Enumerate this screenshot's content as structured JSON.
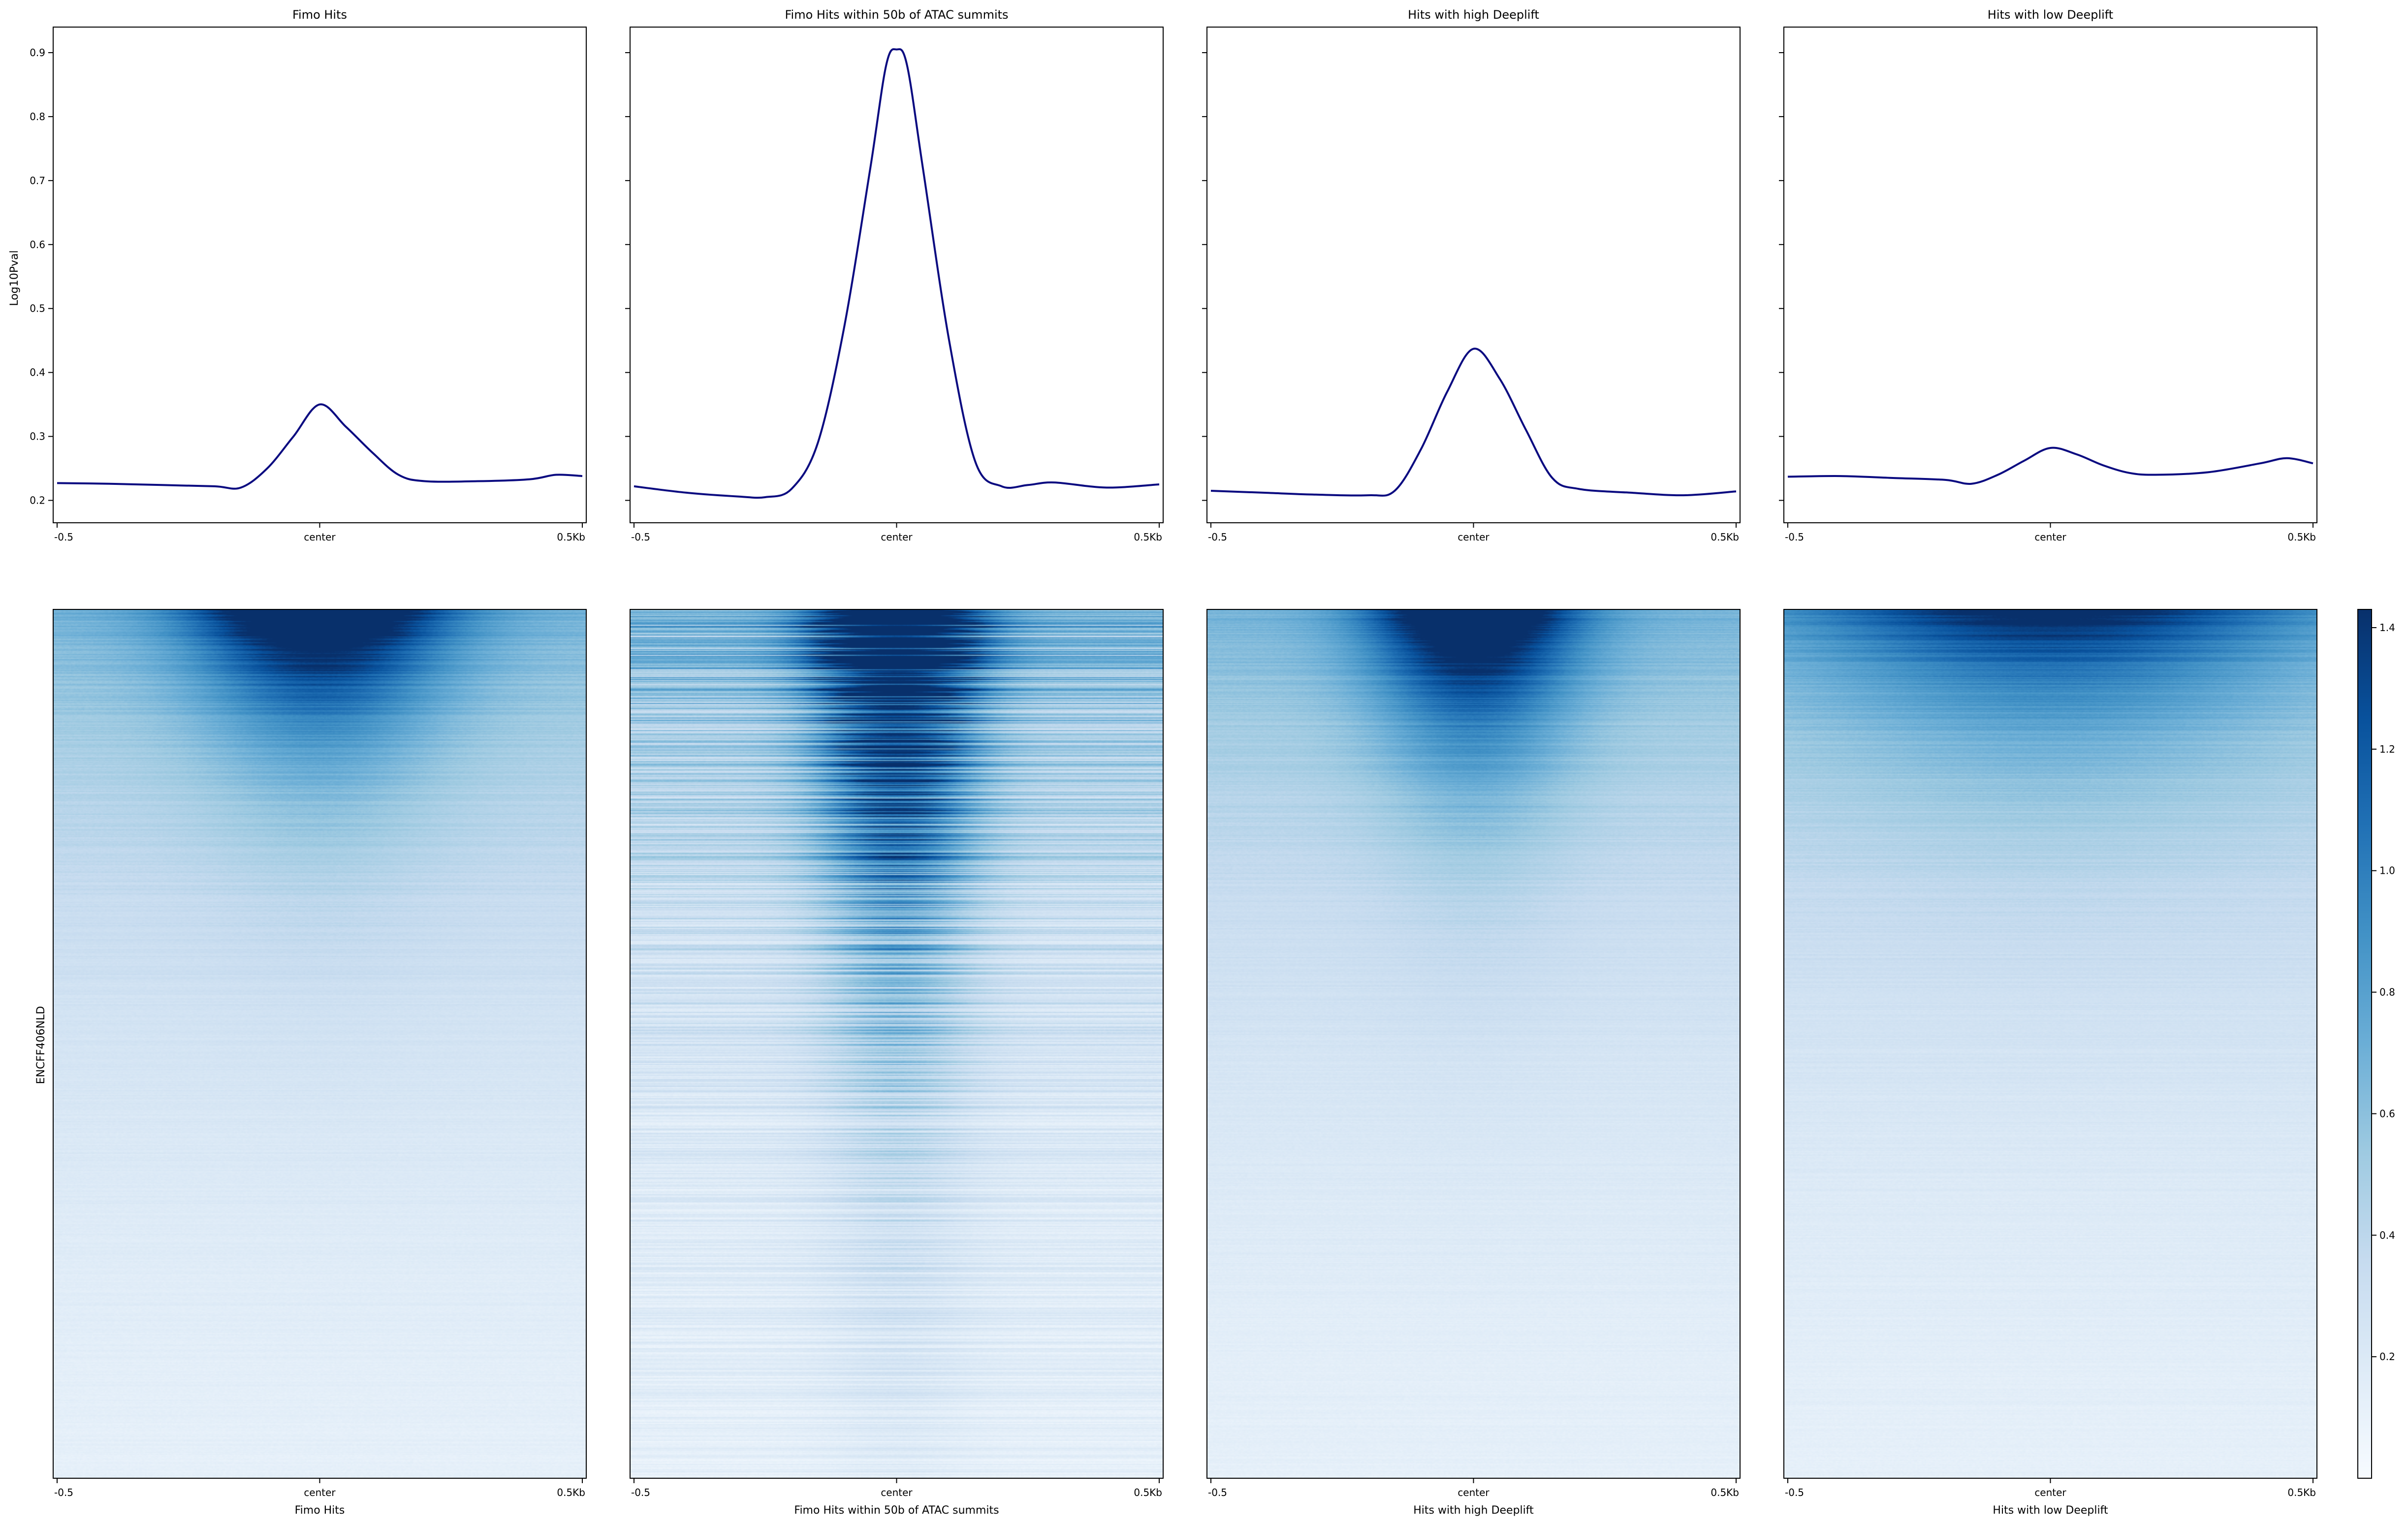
{
  "figure": {
    "ylabel_profile": "Log10Pval",
    "ylabel_heatmap": "ENCFF406NLD",
    "colors": {
      "profile_line": "#0a0a80",
      "colormap": [
        "#f7fbff",
        "#deebf7",
        "#c6dbef",
        "#9ecae1",
        "#6baed6",
        "#4292c6",
        "#2171b5",
        "#08519c",
        "#08306b"
      ]
    }
  },
  "chart_data": [
    {
      "type": "line",
      "panel": "profile",
      "title": "Fimo Hits",
      "xlabel": "",
      "ylabel": "Log10Pval",
      "x_ticks": [
        "-0.5",
        "center",
        "0.5Kb"
      ],
      "x": [
        -0.5,
        -0.4,
        -0.3,
        -0.2,
        -0.15,
        -0.1,
        -0.05,
        0,
        0.05,
        0.1,
        0.15,
        0.2,
        0.3,
        0.4,
        0.45,
        0.5
      ],
      "y": [
        0.227,
        0.226,
        0.224,
        0.222,
        0.22,
        0.25,
        0.3,
        0.35,
        0.315,
        0.275,
        0.24,
        0.23,
        0.23,
        0.233,
        0.24,
        0.238
      ],
      "ylim": [
        0.165,
        0.94
      ],
      "y_ticks": [
        0.2,
        0.3,
        0.4,
        0.5,
        0.6,
        0.7,
        0.8,
        0.9
      ],
      "grid": false
    },
    {
      "type": "line",
      "panel": "profile",
      "title": "Fimo Hits within 50b of ATAC summits",
      "xlabel": "",
      "ylabel": "",
      "x_ticks": [
        "-0.5",
        "center",
        "0.5Kb"
      ],
      "x": [
        -0.5,
        -0.4,
        -0.3,
        -0.25,
        -0.2,
        -0.15,
        -0.1,
        -0.05,
        -0.02,
        0,
        0.02,
        0.05,
        0.1,
        0.15,
        0.2,
        0.25,
        0.3,
        0.4,
        0.5
      ],
      "y": [
        0.222,
        0.212,
        0.206,
        0.205,
        0.218,
        0.29,
        0.47,
        0.72,
        0.88,
        0.905,
        0.88,
        0.72,
        0.45,
        0.26,
        0.222,
        0.224,
        0.228,
        0.22,
        0.225
      ],
      "ylim": [
        0.165,
        0.94
      ],
      "grid": false
    },
    {
      "type": "line",
      "panel": "profile",
      "title": "Hits with high Deeplift",
      "xlabel": "",
      "ylabel": "",
      "x_ticks": [
        "-0.5",
        "center",
        "0.5Kb"
      ],
      "x": [
        -0.5,
        -0.4,
        -0.3,
        -0.2,
        -0.15,
        -0.1,
        -0.05,
        0,
        0.05,
        0.1,
        0.15,
        0.2,
        0.3,
        0.4,
        0.5
      ],
      "y": [
        0.215,
        0.212,
        0.209,
        0.208,
        0.215,
        0.28,
        0.37,
        0.437,
        0.39,
        0.31,
        0.235,
        0.218,
        0.212,
        0.208,
        0.214
      ],
      "ylim": [
        0.165,
        0.94
      ],
      "grid": false
    },
    {
      "type": "line",
      "panel": "profile",
      "title": "Hits with low Deeplift",
      "xlabel": "",
      "ylabel": "",
      "x_ticks": [
        "-0.5",
        "center",
        "0.5Kb"
      ],
      "x": [
        -0.5,
        -0.4,
        -0.3,
        -0.2,
        -0.15,
        -0.1,
        -0.05,
        0,
        0.05,
        0.1,
        0.15,
        0.2,
        0.3,
        0.4,
        0.45,
        0.5
      ],
      "y": [
        0.237,
        0.238,
        0.235,
        0.232,
        0.226,
        0.24,
        0.262,
        0.282,
        0.272,
        0.255,
        0.243,
        0.24,
        0.244,
        0.258,
        0.266,
        0.258
      ],
      "ylim": [
        0.165,
        0.94
      ],
      "grid": false
    },
    {
      "type": "heatmap",
      "panel": "heatmap",
      "xlabel": "Fimo Hits",
      "ylabel": "ENCFF406NLD",
      "x_ticks": [
        "-0.5",
        "center",
        "0.5Kb"
      ],
      "peak": 1.4,
      "decay": 9,
      "width": 0.16,
      "noise": 0.08
    },
    {
      "type": "heatmap",
      "panel": "heatmap",
      "xlabel": "Fimo Hits within 50b of ATAC summits",
      "ylabel": "",
      "x_ticks": [
        "-0.5",
        "center",
        "0.5Kb"
      ],
      "peak": 1.6,
      "decay": 3.5,
      "width": 0.1,
      "noise": 0.3
    },
    {
      "type": "heatmap",
      "panel": "heatmap",
      "xlabel": "Hits with high Deeplift",
      "ylabel": "",
      "x_ticks": [
        "-0.5",
        "center",
        "0.5Kb"
      ],
      "peak": 1.4,
      "decay": 8,
      "width": 0.13,
      "noise": 0.08
    },
    {
      "type": "heatmap",
      "panel": "heatmap",
      "xlabel": "Hits with low Deeplift",
      "ylabel": "",
      "x_ticks": [
        "-0.5",
        "center",
        "0.5Kb"
      ],
      "peak": 0.9,
      "decay": 9,
      "width": 0.3,
      "noise": 0.08
    },
    {
      "type": "colorbar",
      "range": [
        0.0,
        1.43
      ],
      "ticks": [
        "0.2",
        "0.4",
        "0.6",
        "0.8",
        "1.0",
        "1.2",
        "1.4"
      ],
      "tick_values": [
        0.2,
        0.4,
        0.6,
        0.8,
        1.0,
        1.2,
        1.4
      ]
    }
  ]
}
